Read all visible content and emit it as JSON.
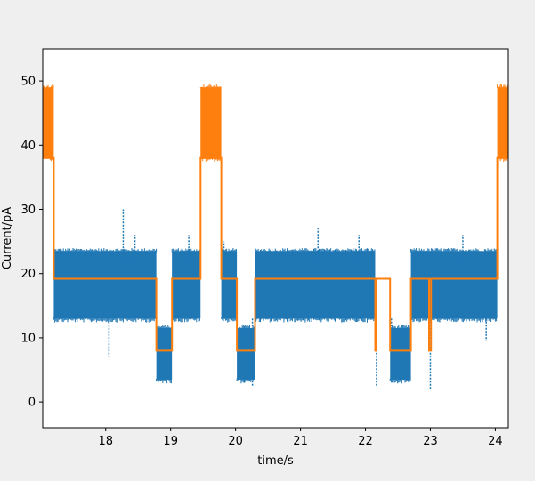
{
  "chart_data": {
    "type": "line",
    "xlabel": "time/s",
    "ylabel": "Current/pA",
    "xlim": [
      17.03,
      24.2
    ],
    "ylim": [
      -4,
      55
    ],
    "x_ticks": [
      18,
      19,
      20,
      21,
      22,
      23,
      24
    ],
    "y_ticks": [
      0,
      10,
      20,
      30,
      40,
      50
    ],
    "grid": false,
    "legend": "none",
    "colors": {
      "raw_signal": "#1f77b4",
      "fit": "#ff7f0e",
      "figure_bg": "#efefef",
      "axes_bg": "#ffffff"
    },
    "series": [
      {
        "style": "dense noisy trace (band)",
        "color": "#1f77b4",
        "segments": [
          {
            "x": [
              17.2,
              18.78
            ],
            "y_band": [
              13,
              23.5
            ],
            "level": 19.2
          },
          {
            "x": [
              18.78,
              19.02
            ],
            "y_band": [
              3.5,
              11.5
            ],
            "level": 8
          },
          {
            "x": [
              19.02,
              19.46
            ],
            "y_band": [
              13,
              23.5
            ],
            "level": 19.2
          },
          {
            "x": [
              19.78,
              20.02
            ],
            "y_band": [
              13,
              23.5
            ],
            "level": 19.2
          },
          {
            "x": [
              20.02,
              20.3
            ],
            "y_band": [
              3.5,
              11.5
            ],
            "level": 8
          },
          {
            "x": [
              20.3,
              22.15
            ],
            "y_band": [
              13,
              23.5
            ],
            "level": 19.2
          },
          {
            "x": [
              22.38,
              22.7
            ],
            "y_band": [
              3.5,
              11.5
            ],
            "level": 8
          },
          {
            "x": [
              22.7,
              24.03
            ],
            "y_band": [
              13,
              23.5
            ],
            "level": 19.2
          }
        ],
        "spikes": [
          {
            "x": 18.27,
            "y": 30
          },
          {
            "x": 18.05,
            "y": 7
          },
          {
            "x": 18.45,
            "y": 26
          },
          {
            "x": 19.28,
            "y": 26
          },
          {
            "x": 19.82,
            "y": 25
          },
          {
            "x": 20.26,
            "y": 2.5
          },
          {
            "x": 21.27,
            "y": 27
          },
          {
            "x": 21.9,
            "y": 26
          },
          {
            "x": 22.17,
            "y": 2.5
          },
          {
            "x": 22.4,
            "y": 3
          },
          {
            "x": 23.0,
            "y": 2
          },
          {
            "x": 23.5,
            "y": 26
          },
          {
            "x": 23.86,
            "y": 9.5
          }
        ]
      },
      {
        "style": "dense noisy trace (band)",
        "color": "#ff7f0e",
        "segments": [
          {
            "x": [
              17.03,
              17.2
            ],
            "y_band": [
              38,
              49
            ]
          },
          {
            "x": [
              19.46,
              19.78
            ],
            "y_band": [
              38,
              49
            ]
          },
          {
            "x": [
              24.03,
              24.2
            ],
            "y_band": [
              38,
              49
            ]
          }
        ]
      },
      {
        "style": "step line (fit)",
        "color": "#ff7f0e",
        "x": [
          17.03,
          17.2,
          17.2,
          18.78,
          18.78,
          19.02,
          19.02,
          19.46,
          19.46,
          19.78,
          19.78,
          20.02,
          20.02,
          20.3,
          20.3,
          22.15,
          22.15,
          22.17,
          22.17,
          22.38,
          22.38,
          22.7,
          22.7,
          22.98,
          22.98,
          23.01,
          23.01,
          24.03,
          24.03,
          24.2
        ],
        "y": [
          38,
          38,
          19.2,
          19.2,
          8,
          8,
          19.2,
          19.2,
          38,
          38,
          19.2,
          19.2,
          8,
          8,
          19.2,
          19.2,
          8,
          8,
          19.2,
          19.2,
          8,
          8,
          19.2,
          19.2,
          8,
          8,
          19.2,
          19.2,
          38,
          38
        ]
      }
    ]
  }
}
